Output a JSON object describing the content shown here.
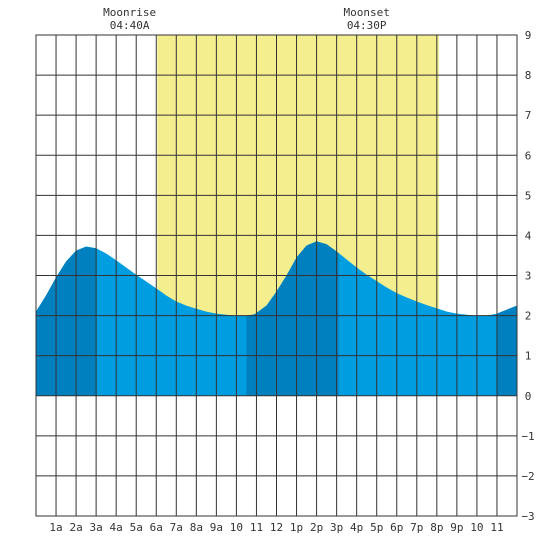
{
  "chart_data": {
    "type": "area",
    "x_unit": "hour of day",
    "xlim": [
      0,
      24
    ],
    "ylim": [
      -3,
      9
    ],
    "grid": true,
    "x_tick_labels": [
      "1a",
      "2a",
      "3a",
      "4a",
      "5a",
      "6a",
      "7a",
      "8a",
      "9a",
      "10",
      "11",
      "12",
      "1p",
      "2p",
      "3p",
      "4p",
      "5p",
      "6p",
      "7p",
      "8p",
      "9p",
      "10",
      "11"
    ],
    "y_tick_labels": [
      "9",
      "8",
      "7",
      "6",
      "5",
      "4",
      "3",
      "2",
      "1",
      "0",
      "−1",
      "−2",
      "−3"
    ],
    "daylight": [
      6.05,
      20.1
    ],
    "annotations": [
      {
        "label": "Moonrise",
        "time": "04:40A",
        "x": 4.67
      },
      {
        "label": "Moonset",
        "time": "04:30P",
        "x": 16.5
      }
    ],
    "tide_curve": {
      "x": [
        0,
        0.5,
        1,
        1.5,
        2,
        2.5,
        3,
        3.5,
        4,
        4.5,
        5,
        5.5,
        6,
        6.5,
        7,
        7.5,
        8,
        8.5,
        9,
        9.5,
        10,
        10.5,
        10.9,
        11.5,
        12,
        12.5,
        13,
        13.5,
        14,
        14.5,
        15,
        15.5,
        16,
        16.5,
        17,
        17.5,
        18,
        18.5,
        19,
        19.5,
        20,
        20.5,
        21,
        21.5,
        22,
        22.5,
        23,
        23.5,
        24
      ],
      "y": [
        2.1,
        2.5,
        2.95,
        3.35,
        3.62,
        3.72,
        3.68,
        3.55,
        3.38,
        3.2,
        3.02,
        2.85,
        2.68,
        2.5,
        2.35,
        2.25,
        2.17,
        2.1,
        2.05,
        2.02,
        2.0,
        2.0,
        2.03,
        2.25,
        2.6,
        3.0,
        3.45,
        3.75,
        3.85,
        3.78,
        3.6,
        3.4,
        3.2,
        3.02,
        2.86,
        2.7,
        2.56,
        2.45,
        2.35,
        2.26,
        2.18,
        2.1,
        2.05,
        2.02,
        2.0,
        2.0,
        2.05,
        2.15,
        2.25
      ]
    },
    "dark_segments": [
      [
        0,
        3.0
      ],
      [
        10.5,
        15.1
      ],
      [
        23.0,
        24
      ]
    ],
    "colors": {
      "background": "#ffffff",
      "grid": "#333333",
      "daylight": "#f5ee8f",
      "tide": "#009de0",
      "tide_dark": "#0080bf"
    }
  }
}
